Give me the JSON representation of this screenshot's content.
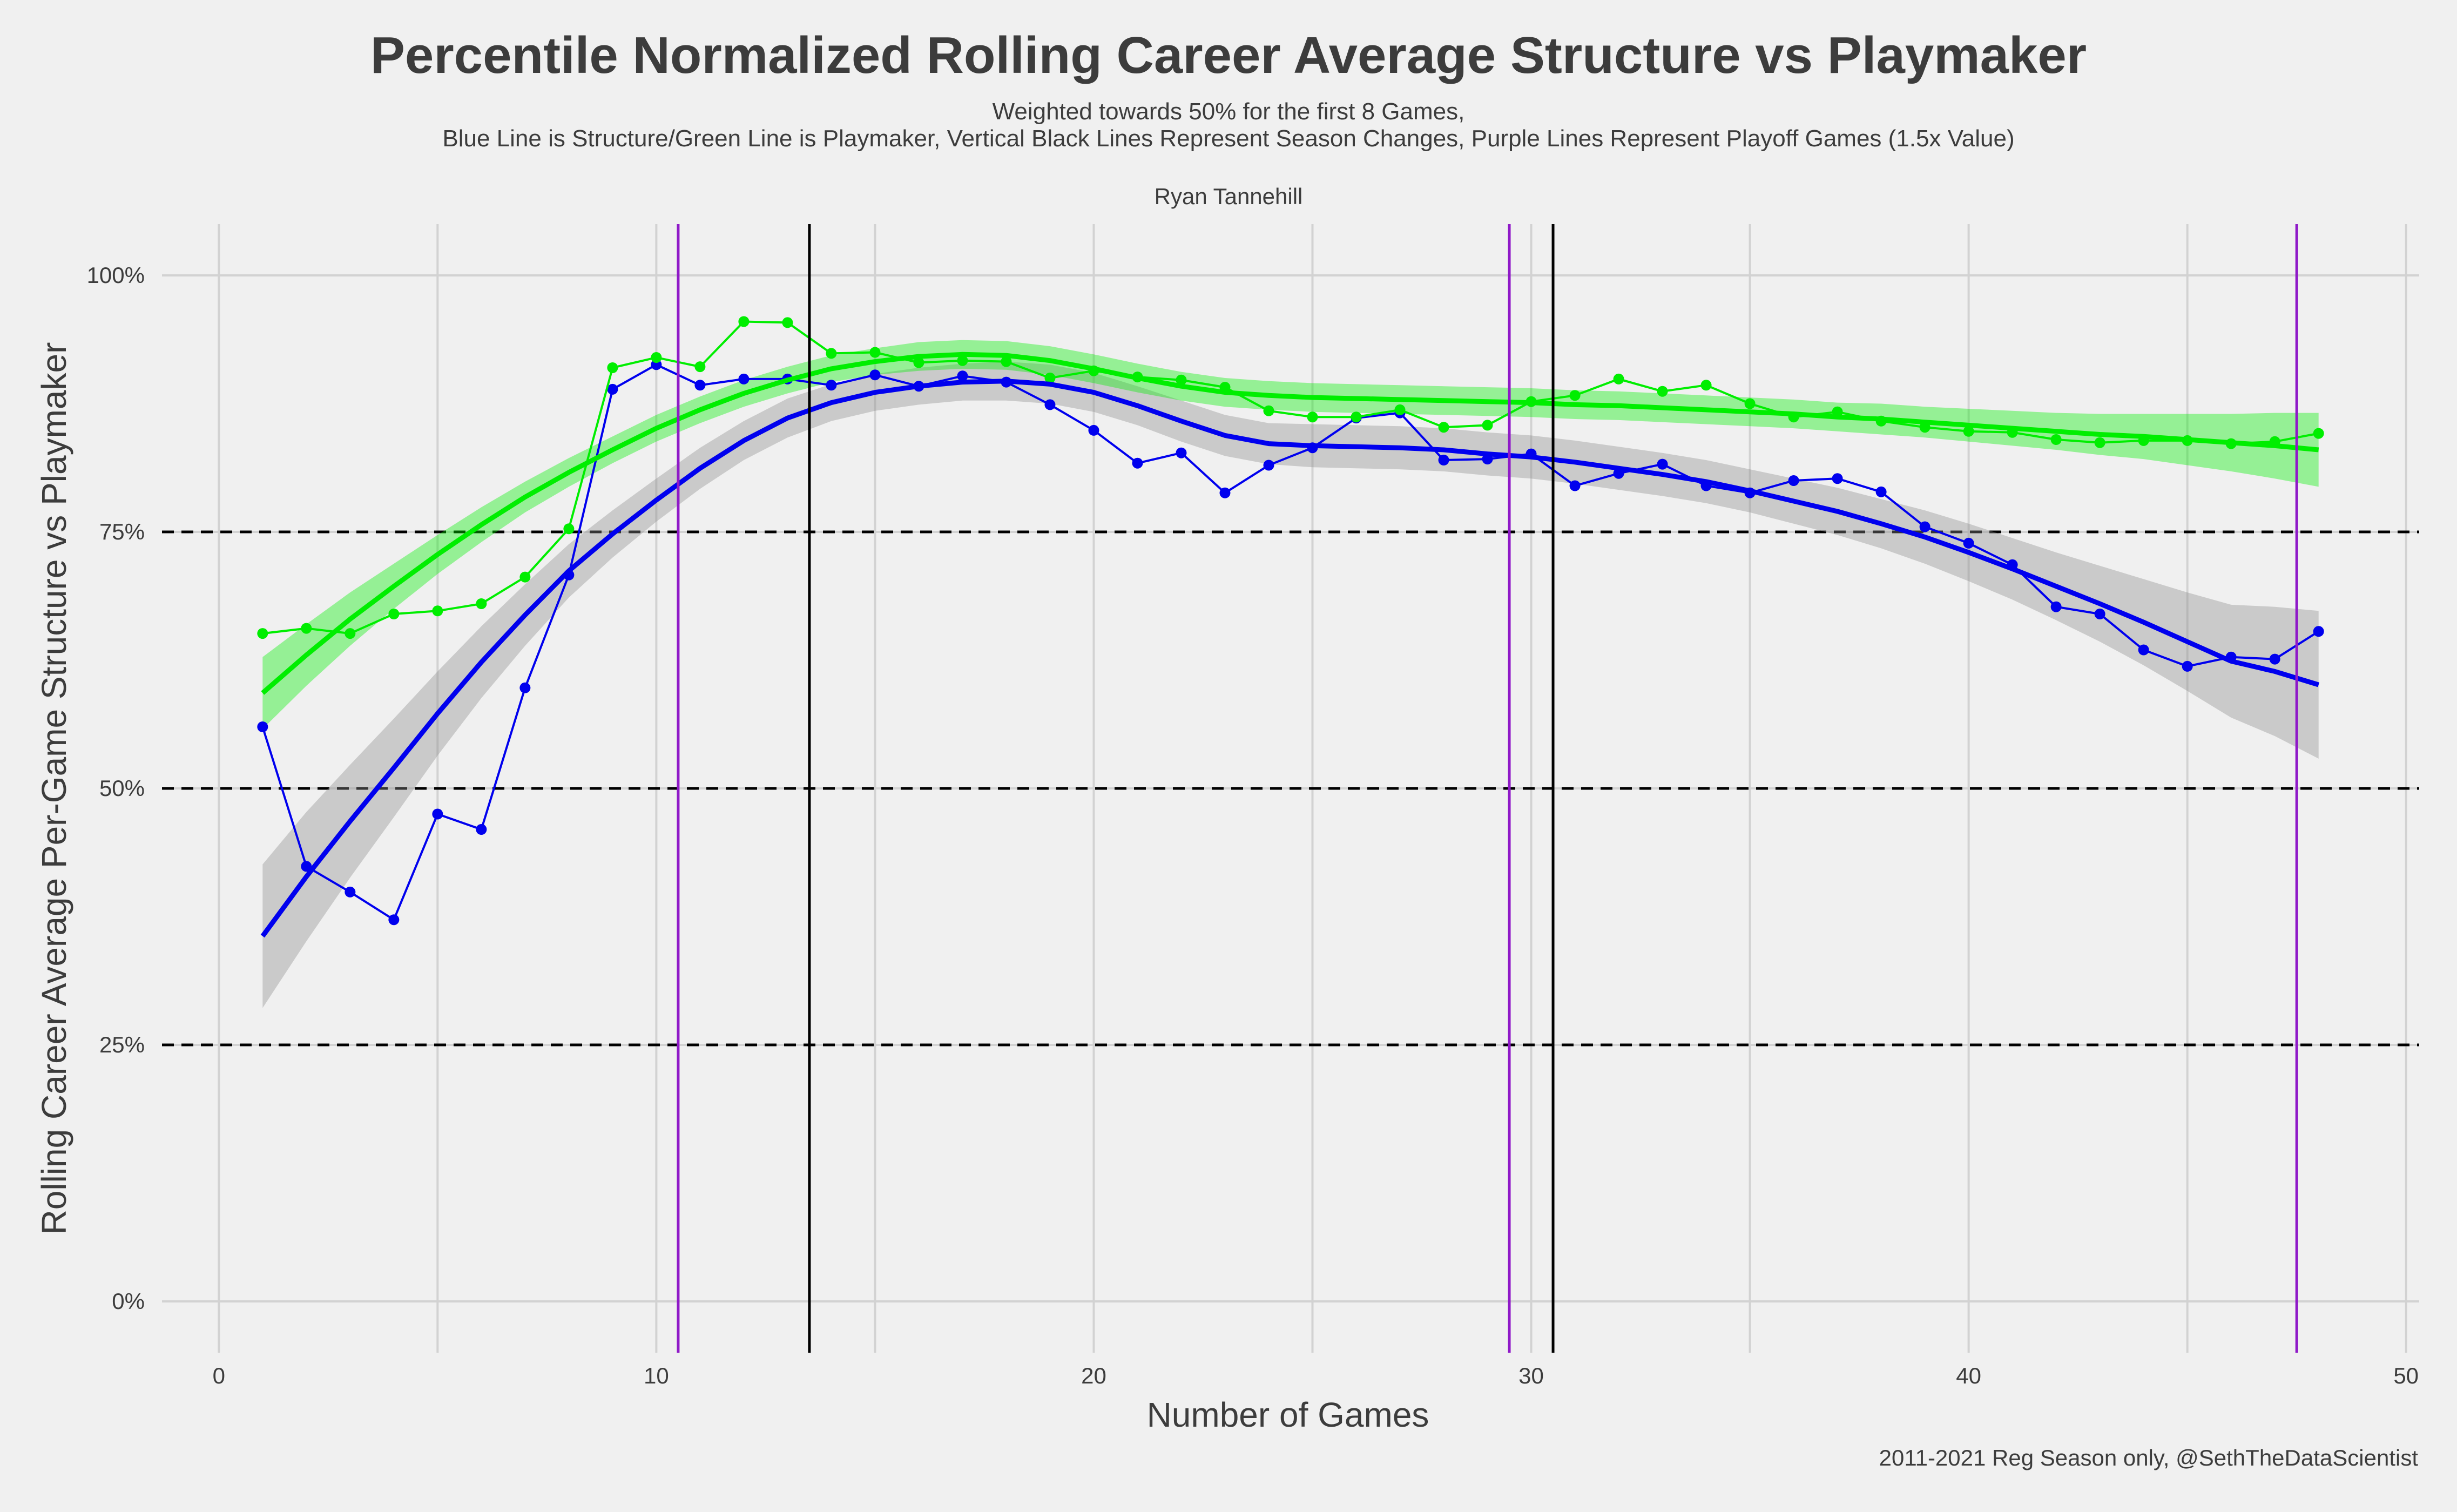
{
  "chart_data": {
    "type": "line",
    "title": "Percentile Normalized Rolling Career Average Structure vs Playmaker",
    "subtitle_line1": "Weighted towards 50% for the first 8 Games,",
    "subtitle_line2": "Blue Line is Structure/Green Line is Playmaker, Vertical Black Lines Represent Season Changes, Purple Lines Represent Playoff Games (1.5x Value)",
    "facet_label": "Ryan Tannehill",
    "xlabel": "Number of Games",
    "ylabel": "Rolling Career Average Per-Game Structure vs Playmaker",
    "caption": "2011-2021 Reg Season only, @SethTheDataScientist",
    "xlim": [
      -1.3,
      50.3
    ],
    "ylim": [
      -0.05,
      1.05
    ],
    "x_ticks": [
      0,
      10,
      20,
      30,
      40,
      50
    ],
    "x_tick_labels": [
      "0",
      "10",
      "20",
      "30",
      "40",
      "50"
    ],
    "y_ticks": [
      0,
      0.25,
      0.5,
      0.75,
      1.0
    ],
    "y_tick_labels": [
      "0%",
      "25%",
      "50%",
      "75%",
      "100%"
    ],
    "grid": true,
    "reference_hlines": [
      0.25,
      0.5,
      0.75
    ],
    "season_change_vlines": [
      13.5,
      30.5
    ],
    "playoff_vlines": [
      10.5,
      29.5,
      47.5
    ],
    "x": [
      1,
      2,
      3,
      4,
      5,
      6,
      7,
      8,
      9,
      10,
      11,
      12,
      13,
      14,
      15,
      16,
      17,
      18,
      19,
      20,
      21,
      22,
      23,
      24,
      25,
      26,
      27,
      28,
      29,
      30,
      31,
      32,
      33,
      34,
      35,
      36,
      37,
      38,
      39,
      40,
      41,
      42,
      43,
      44,
      45,
      46,
      47,
      48
    ],
    "series": [
      {
        "name": "Structure",
        "color": "#0000ee",
        "values": [
          0.56,
          0.424,
          0.399,
          0.372,
          0.475,
          0.46,
          0.598,
          0.708,
          0.889,
          0.913,
          0.893,
          0.899,
          0.899,
          0.893,
          0.903,
          0.892,
          0.902,
          0.896,
          0.874,
          0.849,
          0.817,
          0.827,
          0.788,
          0.815,
          0.832,
          0.861,
          0.866,
          0.82,
          0.821,
          0.826,
          0.795,
          0.807,
          0.816,
          0.795,
          0.788,
          0.8,
          0.802,
          0.789,
          0.755,
          0.739,
          0.718,
          0.677,
          0.67,
          0.635,
          0.619,
          0.628,
          0.626,
          0.653
        ],
        "smooth": [
          0.356,
          0.414,
          0.468,
          0.52,
          0.573,
          0.623,
          0.669,
          0.712,
          0.748,
          0.781,
          0.812,
          0.839,
          0.861,
          0.876,
          0.886,
          0.892,
          0.896,
          0.897,
          0.894,
          0.886,
          0.873,
          0.858,
          0.844,
          0.836,
          0.834,
          0.833,
          0.832,
          0.83,
          0.826,
          0.823,
          0.818,
          0.812,
          0.806,
          0.799,
          0.79,
          0.78,
          0.77,
          0.758,
          0.745,
          0.73,
          0.714,
          0.697,
          0.68,
          0.662,
          0.643,
          0.624,
          0.614,
          0.601
        ],
        "smooth_band": [
          0.07,
          0.063,
          0.055,
          0.048,
          0.041,
          0.035,
          0.03,
          0.026,
          0.023,
          0.021,
          0.02,
          0.019,
          0.019,
          0.018,
          0.018,
          0.018,
          0.018,
          0.019,
          0.019,
          0.019,
          0.019,
          0.02,
          0.02,
          0.02,
          0.021,
          0.021,
          0.021,
          0.021,
          0.021,
          0.021,
          0.021,
          0.021,
          0.021,
          0.021,
          0.021,
          0.022,
          0.023,
          0.024,
          0.026,
          0.028,
          0.03,
          0.033,
          0.037,
          0.042,
          0.048,
          0.055,
          0.063,
          0.072
        ]
      },
      {
        "name": "Playmaker",
        "color": "#00ee00",
        "values": [
          0.651,
          0.656,
          0.651,
          0.67,
          0.673,
          0.68,
          0.706,
          0.753,
          0.91,
          0.92,
          0.911,
          0.955,
          0.954,
          0.924,
          0.925,
          0.915,
          0.917,
          0.916,
          0.9,
          0.907,
          0.901,
          0.898,
          0.891,
          0.868,
          0.862,
          0.862,
          0.869,
          0.852,
          0.854,
          0.877,
          0.883,
          0.899,
          0.887,
          0.893,
          0.875,
          0.862,
          0.867,
          0.858,
          0.852,
          0.848,
          0.847,
          0.84,
          0.837,
          0.839,
          0.839,
          0.836,
          0.838,
          0.846
        ],
        "smooth": [
          0.593,
          0.63,
          0.665,
          0.697,
          0.728,
          0.757,
          0.784,
          0.808,
          0.83,
          0.851,
          0.869,
          0.885,
          0.898,
          0.909,
          0.916,
          0.921,
          0.923,
          0.922,
          0.917,
          0.909,
          0.9,
          0.892,
          0.886,
          0.883,
          0.881,
          0.88,
          0.879,
          0.878,
          0.877,
          0.876,
          0.874,
          0.873,
          0.871,
          0.869,
          0.867,
          0.865,
          0.862,
          0.86,
          0.857,
          0.854,
          0.851,
          0.848,
          0.845,
          0.843,
          0.84,
          0.837,
          0.834,
          0.83
        ],
        "smooth_band": [
          0.035,
          0.03,
          0.026,
          0.022,
          0.019,
          0.017,
          0.015,
          0.014,
          0.013,
          0.013,
          0.013,
          0.013,
          0.013,
          0.013,
          0.013,
          0.014,
          0.014,
          0.014,
          0.014,
          0.014,
          0.014,
          0.014,
          0.014,
          0.014,
          0.014,
          0.014,
          0.014,
          0.014,
          0.014,
          0.014,
          0.014,
          0.014,
          0.014,
          0.014,
          0.014,
          0.014,
          0.014,
          0.015,
          0.015,
          0.016,
          0.017,
          0.018,
          0.02,
          0.022,
          0.025,
          0.028,
          0.032,
          0.036
        ]
      }
    ]
  }
}
